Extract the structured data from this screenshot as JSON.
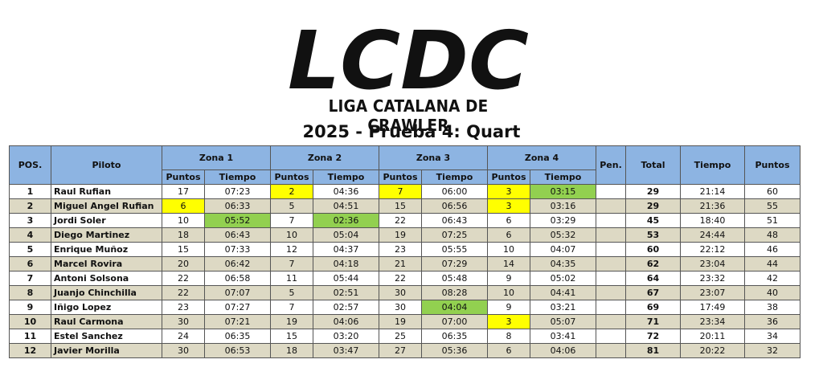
{
  "logo": {
    "letters": "LCDC",
    "subtitle": "LIGA CATALANA DE CRAWLER"
  },
  "title": "2025 - Prueba 4: Quart",
  "headers": {
    "pos": "POS.",
    "piloto": "Piloto",
    "zonas": [
      "Zona 1",
      "Zona 2",
      "Zona 3",
      "Zona 4"
    ],
    "puntos": "Puntos",
    "tiempo": "Tiempo",
    "pen": "Pen.",
    "total": "Total",
    "tiempo_total": "Tiempo",
    "puntos_total": "Puntos"
  },
  "highlight_colors": {
    "yellow": "#ffff00",
    "green": "#92d050",
    "header": "#8db4e2",
    "alt_row": "#ddd9c4"
  },
  "rows": [
    {
      "pos": "1",
      "piloto": "Raul Rufian",
      "z": [
        [
          "17",
          "07:23"
        ],
        [
          "2",
          "04:36"
        ],
        [
          "7",
          "06:00"
        ],
        [
          "3",
          "03:15"
        ]
      ],
      "pen": "",
      "total": "29",
      "tiempo": "21:14",
      "puntos": "60",
      "hl": [
        [
          "",
          ""
        ],
        [
          "y",
          ""
        ],
        [
          "y",
          ""
        ],
        [
          "y",
          "g"
        ]
      ]
    },
    {
      "pos": "2",
      "piloto": "Miguel Angel Rufian",
      "z": [
        [
          "6",
          "06:33"
        ],
        [
          "5",
          "04:51"
        ],
        [
          "15",
          "06:56"
        ],
        [
          "3",
          "03:16"
        ]
      ],
      "pen": "",
      "total": "29",
      "tiempo": "21:36",
      "puntos": "55",
      "hl": [
        [
          "y",
          ""
        ],
        [
          "",
          ""
        ],
        [
          "",
          ""
        ],
        [
          "y",
          ""
        ]
      ]
    },
    {
      "pos": "3",
      "piloto": "Jordi Soler",
      "z": [
        [
          "10",
          "05:52"
        ],
        [
          "7",
          "02:36"
        ],
        [
          "22",
          "06:43"
        ],
        [
          "6",
          "03:29"
        ]
      ],
      "pen": "",
      "total": "45",
      "tiempo": "18:40",
      "puntos": "51",
      "hl": [
        [
          "",
          "g"
        ],
        [
          "",
          "g"
        ],
        [
          "",
          ""
        ],
        [
          "",
          ""
        ]
      ]
    },
    {
      "pos": "4",
      "piloto": "Diego Martinez",
      "z": [
        [
          "18",
          "06:43"
        ],
        [
          "10",
          "05:04"
        ],
        [
          "19",
          "07:25"
        ],
        [
          "6",
          "05:32"
        ]
      ],
      "pen": "",
      "total": "53",
      "tiempo": "24:44",
      "puntos": "48",
      "hl": [
        [
          "",
          ""
        ],
        [
          "",
          ""
        ],
        [
          "",
          ""
        ],
        [
          "",
          ""
        ]
      ]
    },
    {
      "pos": "5",
      "piloto": "Enrique Muñoz",
      "z": [
        [
          "15",
          "07:33"
        ],
        [
          "12",
          "04:37"
        ],
        [
          "23",
          "05:55"
        ],
        [
          "10",
          "04:07"
        ]
      ],
      "pen": "",
      "total": "60",
      "tiempo": "22:12",
      "puntos": "46",
      "hl": [
        [
          "",
          ""
        ],
        [
          "",
          ""
        ],
        [
          "",
          ""
        ],
        [
          "",
          ""
        ]
      ]
    },
    {
      "pos": "6",
      "piloto": "Marcel Rovira",
      "z": [
        [
          "20",
          "06:42"
        ],
        [
          "7",
          "04:18"
        ],
        [
          "21",
          "07:29"
        ],
        [
          "14",
          "04:35"
        ]
      ],
      "pen": "",
      "total": "62",
      "tiempo": "23:04",
      "puntos": "44",
      "hl": [
        [
          "",
          ""
        ],
        [
          "",
          ""
        ],
        [
          "",
          ""
        ],
        [
          "",
          ""
        ]
      ]
    },
    {
      "pos": "7",
      "piloto": "Antoni Solsona",
      "z": [
        [
          "22",
          "06:58"
        ],
        [
          "11",
          "05:44"
        ],
        [
          "22",
          "05:48"
        ],
        [
          "9",
          "05:02"
        ]
      ],
      "pen": "",
      "total": "64",
      "tiempo": "23:32",
      "puntos": "42",
      "hl": [
        [
          "",
          ""
        ],
        [
          "",
          ""
        ],
        [
          "",
          ""
        ],
        [
          "",
          ""
        ]
      ]
    },
    {
      "pos": "8",
      "piloto": "Juanjo Chinchilla",
      "z": [
        [
          "22",
          "07:07"
        ],
        [
          "5",
          "02:51"
        ],
        [
          "30",
          "08:28"
        ],
        [
          "10",
          "04:41"
        ]
      ],
      "pen": "",
      "total": "67",
      "tiempo": "23:07",
      "puntos": "40",
      "hl": [
        [
          "",
          ""
        ],
        [
          "",
          ""
        ],
        [
          "",
          ""
        ],
        [
          "",
          ""
        ]
      ]
    },
    {
      "pos": "9",
      "piloto": "Iñigo Lopez",
      "z": [
        [
          "23",
          "07:27"
        ],
        [
          "7",
          "02:57"
        ],
        [
          "30",
          "04:04"
        ],
        [
          "9",
          "03:21"
        ]
      ],
      "pen": "",
      "total": "69",
      "tiempo": "17:49",
      "puntos": "38",
      "hl": [
        [
          "",
          ""
        ],
        [
          "",
          ""
        ],
        [
          "",
          "g"
        ],
        [
          "",
          ""
        ]
      ]
    },
    {
      "pos": "10",
      "piloto": "Raul Carmona",
      "z": [
        [
          "30",
          "07:21"
        ],
        [
          "19",
          "04:06"
        ],
        [
          "19",
          "07:00"
        ],
        [
          "3",
          "05:07"
        ]
      ],
      "pen": "",
      "total": "71",
      "tiempo": "23:34",
      "puntos": "36",
      "hl": [
        [
          "",
          ""
        ],
        [
          "",
          ""
        ],
        [
          "",
          ""
        ],
        [
          "y",
          ""
        ]
      ]
    },
    {
      "pos": "11",
      "piloto": "Estel Sanchez",
      "z": [
        [
          "24",
          "06:35"
        ],
        [
          "15",
          "03:20"
        ],
        [
          "25",
          "06:35"
        ],
        [
          "8",
          "03:41"
        ]
      ],
      "pen": "",
      "total": "72",
      "tiempo": "20:11",
      "puntos": "34",
      "hl": [
        [
          "",
          ""
        ],
        [
          "",
          ""
        ],
        [
          "",
          ""
        ],
        [
          "",
          ""
        ]
      ]
    },
    {
      "pos": "12",
      "piloto": "Javier Morilla",
      "z": [
        [
          "30",
          "06:53"
        ],
        [
          "18",
          "03:47"
        ],
        [
          "27",
          "05:36"
        ],
        [
          "6",
          "04:06"
        ]
      ],
      "pen": "",
      "total": "81",
      "tiempo": "20:22",
      "puntos": "32",
      "hl": [
        [
          "",
          ""
        ],
        [
          "",
          ""
        ],
        [
          "",
          ""
        ],
        [
          "",
          ""
        ]
      ]
    }
  ]
}
